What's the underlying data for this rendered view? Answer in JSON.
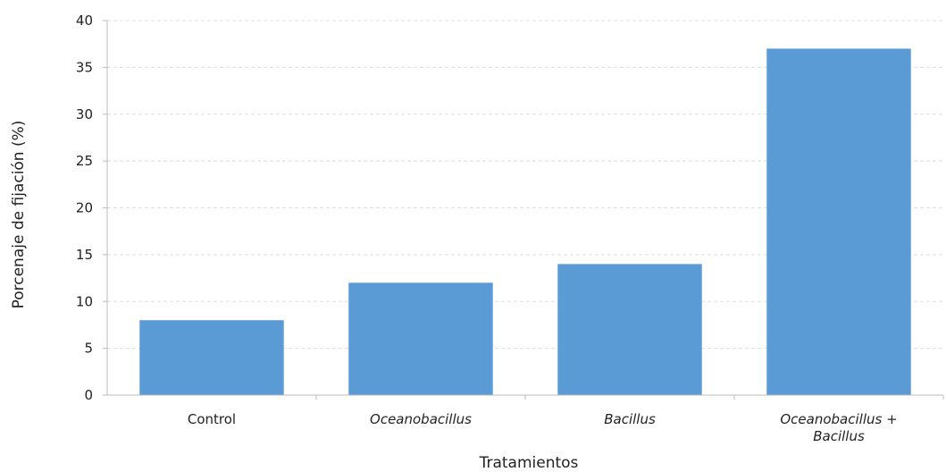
{
  "chart_data": {
    "type": "bar",
    "categories": [
      {
        "lines": [
          "Control"
        ],
        "italic": false
      },
      {
        "lines": [
          "Oceanobacillus"
        ],
        "italic": true
      },
      {
        "lines": [
          "Bacillus"
        ],
        "italic": true
      },
      {
        "lines": [
          "Oceanobacillus +",
          "Bacillus"
        ],
        "italic": true
      }
    ],
    "values": [
      8,
      12,
      14,
      37
    ],
    "xlabel": "Tratamientos",
    "ylabel": "Porcenaje de fijación (%)",
    "ylim": [
      0,
      40
    ],
    "yticks": [
      "0",
      "5",
      "10",
      "15",
      "20",
      "25",
      "30",
      "35",
      "40"
    ],
    "grid": true,
    "legend": "none",
    "bar_color": "#5b9bd5",
    "grid_color": "#dddddd",
    "axis_color": "#bbbbbb"
  }
}
